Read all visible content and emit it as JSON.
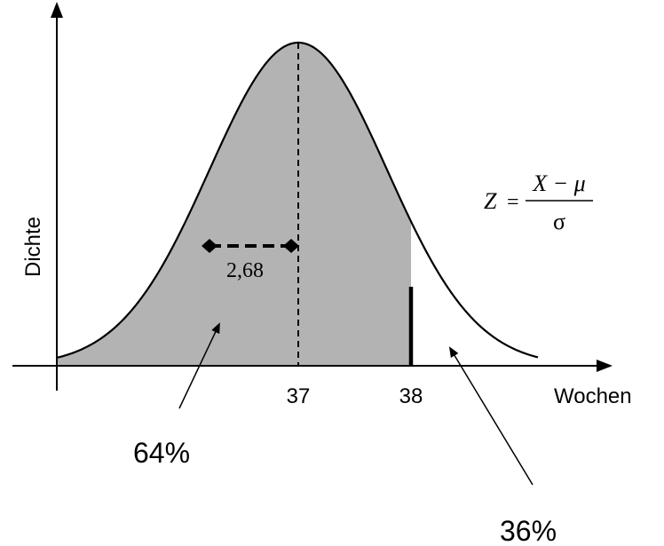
{
  "axes": {
    "y_label": "Dichte",
    "x_label": "Wochen",
    "x_ticks": [
      "37",
      "38"
    ]
  },
  "distribution": {
    "mean": 37,
    "std_dev": 2.68,
    "cutoff": 38,
    "mean_label": "37",
    "cutoff_label": "38",
    "std_dev_label": "2,68"
  },
  "annotations": {
    "left_area_percent": "64%",
    "right_area_percent": "36%"
  },
  "formula": {
    "lhs": "Z",
    "equals": "=",
    "numerator": "X − μ",
    "denominator": "σ"
  },
  "colors": {
    "shaded_area": "#b3b3b3",
    "line": "#000000",
    "background": "#ffffff"
  }
}
